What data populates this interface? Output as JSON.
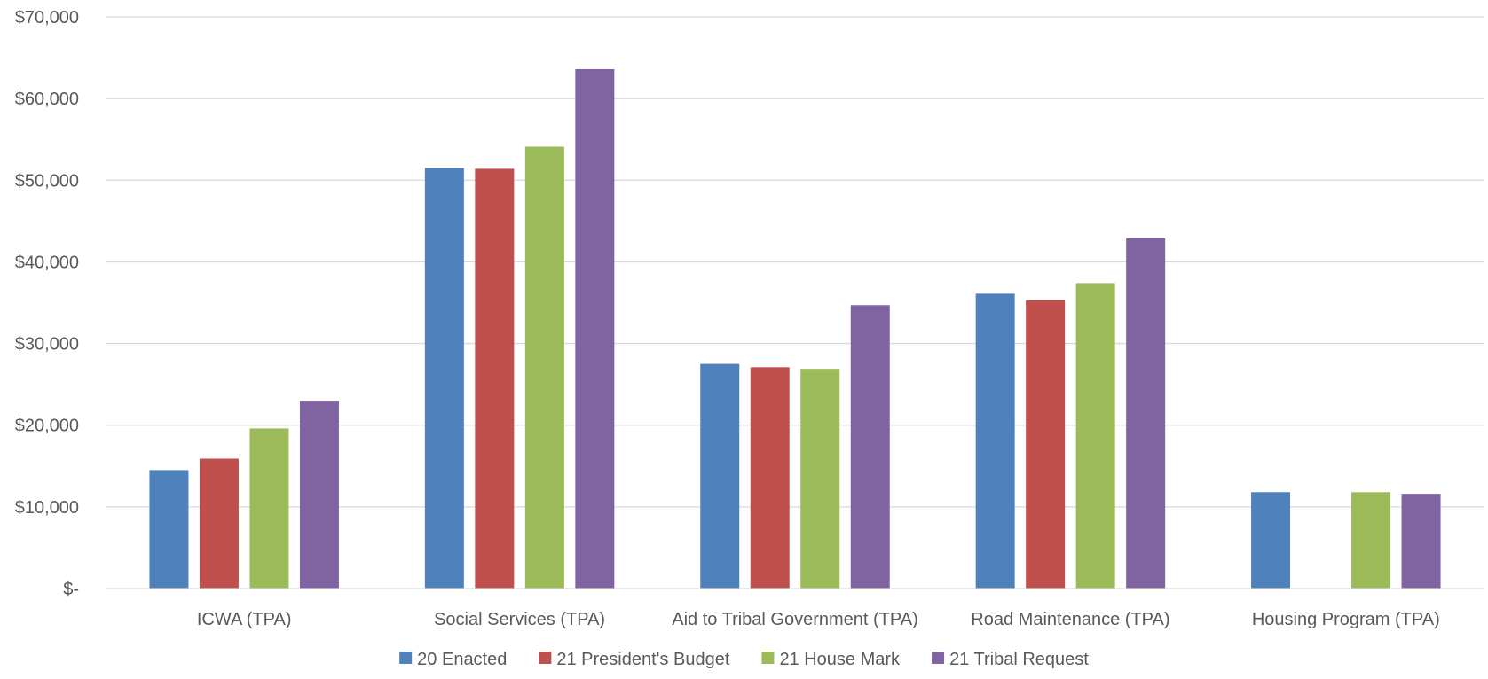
{
  "chart_data": {
    "type": "bar",
    "title": "",
    "xlabel": "",
    "ylabel": "",
    "ylim": [
      0,
      70000
    ],
    "yticks": [
      {
        "value": 0,
        "label": "$-"
      },
      {
        "value": 10000,
        "label": "$10,000"
      },
      {
        "value": 20000,
        "label": "$20,000"
      },
      {
        "value": 30000,
        "label": "$30,000"
      },
      {
        "value": 40000,
        "label": "$40,000"
      },
      {
        "value": 50000,
        "label": "$50,000"
      },
      {
        "value": 60000,
        "label": "$60,000"
      },
      {
        "value": 70000,
        "label": "$70,000"
      }
    ],
    "grid": true,
    "legend_position": "bottom",
    "categories": [
      "ICWA (TPA)",
      "Social Services (TPA)",
      "Aid to Tribal Government (TPA)",
      "Road Maintenance (TPA)",
      "Housing Program (TPA)"
    ],
    "series": [
      {
        "name": "20 Enacted",
        "color": "#4F81BD",
        "values": [
          14500,
          51500,
          27500,
          36100,
          11800
        ]
      },
      {
        "name": "21 President's Budget",
        "color": "#C0504D",
        "values": [
          15900,
          51400,
          27100,
          35300,
          0
        ]
      },
      {
        "name": "21 House Mark",
        "color": "#9BBB59",
        "values": [
          19600,
          54100,
          26900,
          37400,
          11800
        ]
      },
      {
        "name": "21 Tribal Request",
        "color": "#8064A2",
        "values": [
          23000,
          63600,
          34700,
          42900,
          11600
        ]
      }
    ]
  }
}
